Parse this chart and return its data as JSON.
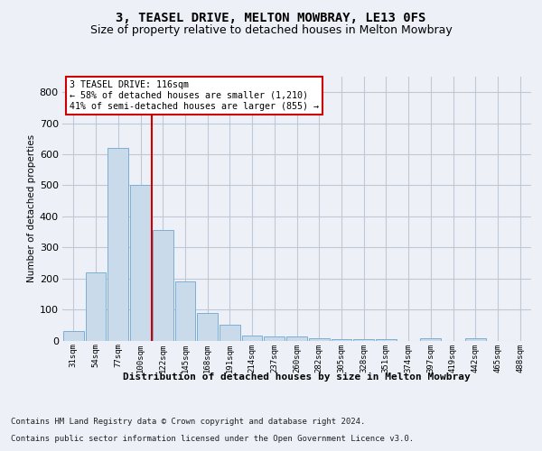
{
  "title1": "3, TEASEL DRIVE, MELTON MOWBRAY, LE13 0FS",
  "title2": "Size of property relative to detached houses in Melton Mowbray",
  "xlabel": "Distribution of detached houses by size in Melton Mowbray",
  "ylabel": "Number of detached properties",
  "categories": [
    "31sqm",
    "54sqm",
    "77sqm",
    "100sqm",
    "122sqm",
    "145sqm",
    "168sqm",
    "191sqm",
    "214sqm",
    "237sqm",
    "260sqm",
    "282sqm",
    "305sqm",
    "328sqm",
    "351sqm",
    "374sqm",
    "397sqm",
    "419sqm",
    "442sqm",
    "465sqm",
    "488sqm"
  ],
  "values": [
    30,
    220,
    620,
    500,
    357,
    190,
    88,
    50,
    17,
    13,
    13,
    7,
    5,
    5,
    5,
    0,
    7,
    0,
    7,
    0,
    0
  ],
  "bar_color": "#c9daea",
  "bar_edge_color": "#7bafd4",
  "grid_color": "#c0c8d8",
  "annotation_text": "3 TEASEL DRIVE: 116sqm\n← 58% of detached houses are smaller (1,210)\n41% of semi-detached houses are larger (855) →",
  "annotation_box_color": "#ffffff",
  "annotation_box_edge": "#cc0000",
  "vline_x": 3.5,
  "vline_color": "#cc0000",
  "footer1": "Contains HM Land Registry data © Crown copyright and database right 2024.",
  "footer2": "Contains public sector information licensed under the Open Government Licence v3.0.",
  "ylim": [
    0,
    850
  ],
  "yticks": [
    0,
    100,
    200,
    300,
    400,
    500,
    600,
    700,
    800
  ],
  "bg_color": "#edf1f7",
  "plot_bg_color": "#edf1f7",
  "title1_fontsize": 10,
  "title2_fontsize": 9,
  "tick_fontsize": 6.5,
  "ylabel_fontsize": 7.5,
  "footer_fontsize": 6.5,
  "xlabel_fontsize": 8
}
